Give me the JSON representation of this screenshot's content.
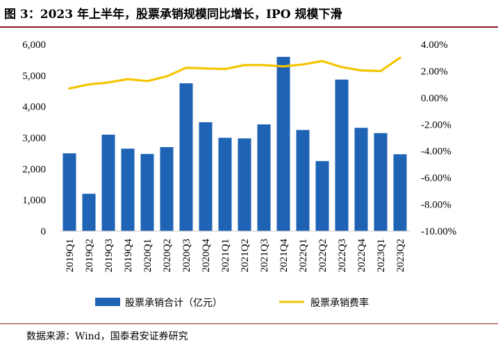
{
  "header": {
    "title": "图 3：2023 年上半年，股票承销规模同比增长，IPO 规模下滑"
  },
  "footer": {
    "source": "数据来源：Wind，国泰君安证券研究"
  },
  "chart_data": {
    "type": "bar",
    "categories": [
      "2019Q1",
      "2019Q2",
      "2019Q3",
      "2019Q4",
      "2020Q1",
      "2020Q2",
      "2020Q3",
      "2020Q4",
      "2021Q1",
      "2021Q2",
      "2021Q3",
      "2021Q4",
      "2022Q1",
      "2022Q2",
      "2022Q3",
      "2022Q4",
      "2023Q1",
      "2023Q2"
    ],
    "series": [
      {
        "name": "股票承销合计（亿元）",
        "type": "bar",
        "axis": "left",
        "color": "#1f63b5",
        "values": [
          2500,
          1200,
          3100,
          2650,
          2480,
          2700,
          4750,
          3500,
          3000,
          2980,
          3430,
          5600,
          3250,
          2250,
          4870,
          3320,
          3150,
          2470
        ]
      },
      {
        "name": "股票承销费率",
        "type": "line",
        "axis": "right",
        "color": "#f5c400",
        "values": [
          0.7,
          1.0,
          1.15,
          1.4,
          1.25,
          1.6,
          2.25,
          2.2,
          2.15,
          2.45,
          2.45,
          2.35,
          2.5,
          2.75,
          2.3,
          2.05,
          2.0,
          3.0
        ]
      }
    ],
    "y_left": {
      "lim": [
        0,
        6000
      ],
      "ticks": [
        0,
        1000,
        2000,
        3000,
        4000,
        5000,
        6000
      ],
      "tick_labels": [
        "0",
        "1,000",
        "2,000",
        "3,000",
        "4,000",
        "5,000",
        "6,000"
      ]
    },
    "y_right": {
      "lim": [
        -10,
        4
      ],
      "ticks": [
        -10,
        -8,
        -6,
        -4,
        -2,
        0,
        2,
        4
      ],
      "tick_labels": [
        "-10.00%",
        "-8.00%",
        "-6.00%",
        "-4.00%",
        "-2.00%",
        "0.00%",
        "2.00%",
        "4.00%"
      ]
    },
    "grid": false,
    "legend": "bottom"
  }
}
